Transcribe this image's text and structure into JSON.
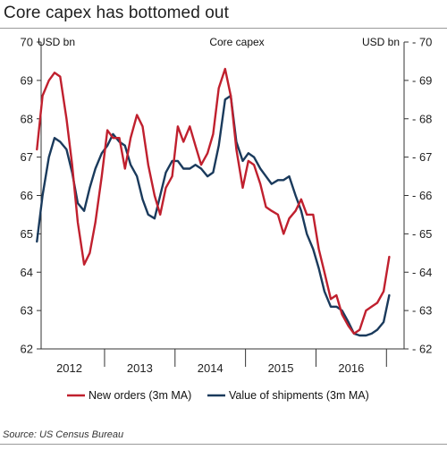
{
  "title": "Core capex has bottomed out",
  "source": "Source: US Census Bureau",
  "chart_data": {
    "type": "line",
    "title": "Core capex",
    "ylabel_left": "USD bn",
    "ylabel_right": "USD bn",
    "ylim": [
      62,
      70
    ],
    "yticks": [
      62,
      63,
      64,
      65,
      66,
      67,
      68,
      69,
      70
    ],
    "xlim": [
      2011.6,
      2016.75
    ],
    "xtick_labels": [
      {
        "x": 2012.0,
        "label": "2012"
      },
      {
        "x": 2013.0,
        "label": "2013"
      },
      {
        "x": 2014.0,
        "label": "2014"
      },
      {
        "x": 2015.0,
        "label": "2015"
      },
      {
        "x": 2016.0,
        "label": "2016"
      }
    ],
    "year_boundaries": [
      2011.5,
      2012.5,
      2013.5,
      2014.5,
      2015.5,
      2016.5
    ],
    "grid": false,
    "legend_position": "bottom",
    "series": [
      {
        "name": "New orders (3m MA)",
        "color": "#c0202e",
        "x": [
          2011.54,
          2011.62,
          2011.71,
          2011.79,
          2011.87,
          2011.96,
          2012.04,
          2012.12,
          2012.21,
          2012.29,
          2012.37,
          2012.46,
          2012.54,
          2012.62,
          2012.71,
          2012.79,
          2012.87,
          2012.96,
          2013.04,
          2013.12,
          2013.21,
          2013.29,
          2013.37,
          2013.46,
          2013.54,
          2013.62,
          2013.71,
          2013.79,
          2013.87,
          2013.96,
          2014.04,
          2014.12,
          2014.21,
          2014.29,
          2014.37,
          2014.46,
          2014.54,
          2014.62,
          2014.71,
          2014.79,
          2014.87,
          2014.96,
          2015.04,
          2015.12,
          2015.21,
          2015.29,
          2015.37,
          2015.46,
          2015.54,
          2015.62,
          2015.71,
          2015.79,
          2015.87,
          2015.96,
          2016.04,
          2016.12,
          2016.21,
          2016.29,
          2016.37,
          2016.46,
          2016.54
        ],
        "values": [
          67.2,
          68.6,
          69.0,
          69.2,
          69.1,
          68.0,
          66.8,
          65.3,
          64.2,
          64.5,
          65.3,
          66.5,
          67.7,
          67.5,
          67.5,
          66.7,
          67.5,
          68.1,
          67.8,
          66.8,
          66.0,
          65.5,
          66.2,
          66.5,
          67.8,
          67.4,
          67.8,
          67.3,
          66.8,
          67.1,
          67.6,
          68.8,
          69.3,
          68.6,
          67.2,
          66.2,
          66.9,
          66.8,
          66.3,
          65.7,
          65.6,
          65.5,
          65.0,
          65.4,
          65.6,
          65.9,
          65.5,
          65.5,
          64.6,
          64.0,
          63.3,
          63.4,
          62.9,
          62.6,
          62.4,
          62.5,
          63.0,
          63.1,
          63.2,
          63.5,
          64.4
        ]
      },
      {
        "name": "Value of shipments (3m MA)",
        "color": "#1a3a5c",
        "x": [
          2011.54,
          2011.62,
          2011.71,
          2011.79,
          2011.87,
          2011.96,
          2012.04,
          2012.12,
          2012.21,
          2012.29,
          2012.37,
          2012.46,
          2012.54,
          2012.62,
          2012.71,
          2012.79,
          2012.87,
          2012.96,
          2013.04,
          2013.12,
          2013.21,
          2013.29,
          2013.37,
          2013.46,
          2013.54,
          2013.62,
          2013.71,
          2013.79,
          2013.87,
          2013.96,
          2014.04,
          2014.12,
          2014.21,
          2014.29,
          2014.37,
          2014.46,
          2014.54,
          2014.62,
          2014.71,
          2014.79,
          2014.87,
          2014.96,
          2015.04,
          2015.12,
          2015.21,
          2015.29,
          2015.37,
          2015.46,
          2015.54,
          2015.62,
          2015.71,
          2015.79,
          2015.87,
          2015.96,
          2016.04,
          2016.12,
          2016.21,
          2016.29,
          2016.37,
          2016.46,
          2016.54
        ],
        "values": [
          64.8,
          66.0,
          67.0,
          67.5,
          67.4,
          67.2,
          66.6,
          65.8,
          65.6,
          66.2,
          66.7,
          67.1,
          67.3,
          67.6,
          67.4,
          67.3,
          66.8,
          66.5,
          65.9,
          65.5,
          65.4,
          66.0,
          66.6,
          66.9,
          66.9,
          66.7,
          66.7,
          66.8,
          66.7,
          66.5,
          66.6,
          67.3,
          68.5,
          68.6,
          67.4,
          66.9,
          67.1,
          67.0,
          66.7,
          66.5,
          66.3,
          66.4,
          66.4,
          66.5,
          66.0,
          65.6,
          65.0,
          64.6,
          64.1,
          63.5,
          63.1,
          63.1,
          63.0,
          62.7,
          62.4,
          62.35,
          62.35,
          62.4,
          62.5,
          62.7,
          63.4
        ]
      }
    ]
  }
}
